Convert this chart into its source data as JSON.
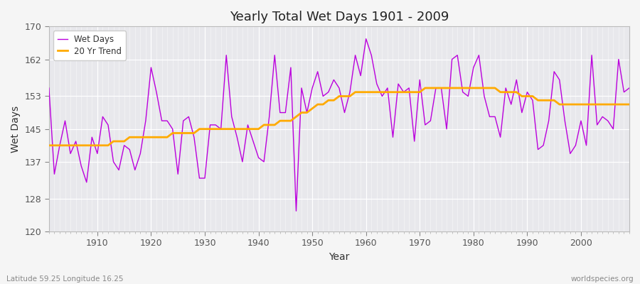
{
  "title": "Yearly Total Wet Days 1901 - 2009",
  "xlabel": "Year",
  "ylabel": "Wet Days",
  "bottom_left_label": "Latitude 59.25 Longitude 16.25",
  "bottom_right_label": "worldspecies.org",
  "ylim": [
    120,
    170
  ],
  "yticks": [
    120,
    128,
    137,
    145,
    153,
    162,
    170
  ],
  "line_color": "#bb00dd",
  "trend_color": "#ffaa00",
  "fig_bg_color": "#f5f5f5",
  "plot_bg_color": "#e8e8ec",
  "years": [
    1901,
    1902,
    1903,
    1904,
    1905,
    1906,
    1907,
    1908,
    1909,
    1910,
    1911,
    1912,
    1913,
    1914,
    1915,
    1916,
    1917,
    1918,
    1919,
    1920,
    1921,
    1922,
    1923,
    1924,
    1925,
    1926,
    1927,
    1928,
    1929,
    1930,
    1931,
    1932,
    1933,
    1934,
    1935,
    1936,
    1937,
    1938,
    1939,
    1940,
    1941,
    1942,
    1943,
    1944,
    1945,
    1946,
    1947,
    1948,
    1949,
    1950,
    1951,
    1952,
    1953,
    1954,
    1955,
    1956,
    1957,
    1958,
    1959,
    1960,
    1961,
    1962,
    1963,
    1964,
    1965,
    1966,
    1967,
    1968,
    1969,
    1970,
    1971,
    1972,
    1973,
    1974,
    1975,
    1976,
    1977,
    1978,
    1979,
    1980,
    1981,
    1982,
    1983,
    1984,
    1985,
    1986,
    1987,
    1988,
    1989,
    1990,
    1991,
    1992,
    1993,
    1994,
    1995,
    1996,
    1997,
    1998,
    1999,
    2000,
    2001,
    2002,
    2003,
    2004,
    2005,
    2006,
    2007,
    2008,
    2009
  ],
  "wet_days": [
    155,
    134,
    141,
    147,
    139,
    142,
    136,
    132,
    143,
    139,
    148,
    146,
    137,
    135,
    141,
    140,
    135,
    139,
    147,
    160,
    154,
    147,
    147,
    145,
    134,
    147,
    148,
    143,
    133,
    133,
    146,
    146,
    145,
    163,
    148,
    143,
    137,
    146,
    142,
    138,
    137,
    148,
    163,
    149,
    149,
    160,
    125,
    155,
    149,
    155,
    159,
    153,
    154,
    157,
    155,
    149,
    154,
    163,
    158,
    167,
    163,
    156,
    153,
    155,
    143,
    156,
    154,
    155,
    142,
    157,
    146,
    147,
    155,
    155,
    145,
    162,
    163,
    154,
    153,
    160,
    163,
    153,
    148,
    148,
    143,
    155,
    151,
    157,
    149,
    154,
    152,
    140,
    141,
    147,
    159,
    157,
    147,
    139,
    141,
    147,
    141,
    163,
    146,
    148,
    147,
    145,
    162,
    154,
    155
  ],
  "trend_years": [
    1901,
    1902,
    1903,
    1904,
    1905,
    1906,
    1907,
    1908,
    1909,
    1910,
    1911,
    1912,
    1913,
    1914,
    1915,
    1916,
    1917,
    1918,
    1919,
    1920,
    1921,
    1922,
    1923,
    1924,
    1925,
    1926,
    1927,
    1928,
    1929,
    1930,
    1931,
    1932,
    1933,
    1934,
    1935,
    1936,
    1937,
    1938,
    1939,
    1940,
    1941,
    1942,
    1943,
    1944,
    1945,
    1946,
    1947,
    1948,
    1949,
    1950,
    1951,
    1952,
    1953,
    1954,
    1955,
    1956,
    1957,
    1958,
    1959,
    1960,
    1961,
    1962,
    1963,
    1964,
    1965,
    1966,
    1967,
    1968,
    1969,
    1970,
    1971,
    1972,
    1973,
    1974,
    1975,
    1976,
    1977,
    1978,
    1979,
    1980,
    1981,
    1982,
    1983,
    1984,
    1985,
    1986,
    1987,
    1988,
    1989,
    1990,
    1991,
    1992,
    1993,
    1994,
    1995,
    1996,
    1997,
    1998,
    1999,
    2000,
    2001,
    2002,
    2003,
    2004,
    2005,
    2006,
    2007,
    2008,
    2009
  ],
  "trend_values": [
    141,
    141,
    141,
    141,
    141,
    141,
    141,
    141,
    141,
    141,
    141,
    141,
    142,
    142,
    142,
    143,
    143,
    143,
    143,
    143,
    143,
    143,
    143,
    144,
    144,
    144,
    144,
    144,
    145,
    145,
    145,
    145,
    145,
    145,
    145,
    145,
    145,
    145,
    145,
    145,
    146,
    146,
    146,
    147,
    147,
    147,
    148,
    149,
    149,
    150,
    151,
    151,
    152,
    152,
    153,
    153,
    153,
    154,
    154,
    154,
    154,
    154,
    154,
    154,
    154,
    154,
    154,
    154,
    154,
    154,
    155,
    155,
    155,
    155,
    155,
    155,
    155,
    155,
    155,
    155,
    155,
    155,
    155,
    155,
    154,
    154,
    154,
    154,
    153,
    153,
    153,
    152,
    152,
    152,
    152,
    151,
    151,
    151,
    151,
    151,
    151,
    151,
    151,
    151,
    151,
    151,
    151,
    151,
    151
  ]
}
